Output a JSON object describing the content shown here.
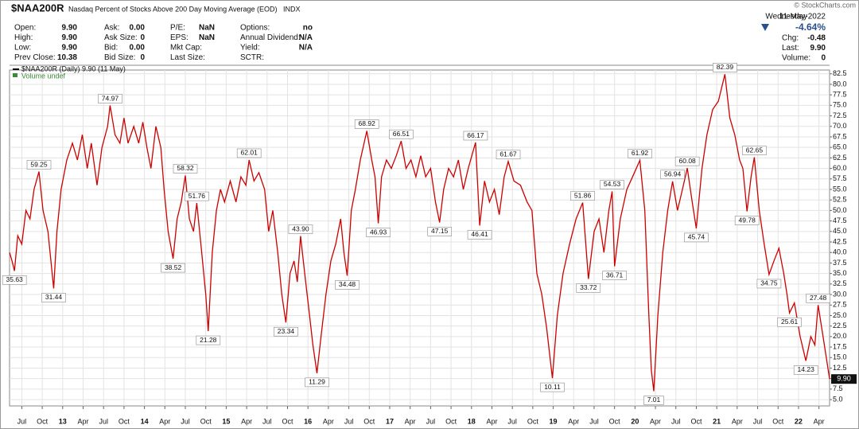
{
  "header": {
    "symbol": "$NAA200R",
    "description": "Nasdaq Percent of Stocks Above 200 Day Moving Average (EOD)",
    "exchange": "INDX",
    "copyright": "© StockCharts.com",
    "weekday": "Wednesday",
    "date": "11-May-2022",
    "change_pct": "-4.64%",
    "quote": [
      [
        {
          "label": "Open:",
          "value": "9.90"
        },
        {
          "label": "High:",
          "value": "9.90"
        },
        {
          "label": "Low:",
          "value": "9.90"
        },
        {
          "label": "Prev Close:",
          "value": "10.38"
        }
      ],
      [
        {
          "label": "Ask:",
          "value": "0.00"
        },
        {
          "label": "Ask Size:",
          "value": "0"
        },
        {
          "label": "Bid:",
          "value": "0.00"
        },
        {
          "label": "Bid Size:",
          "value": "0"
        }
      ],
      [
        {
          "label": "P/E:",
          "value": "NaN"
        },
        {
          "label": "EPS:",
          "value": "NaN"
        },
        {
          "label": "Mkt Cap:"
        },
        {
          "label": "Last Size:"
        }
      ],
      [
        {
          "label": "Options:",
          "value": "no"
        },
        {
          "label": "Annual Dividend:",
          "value": "N/A"
        },
        {
          "label": "Yield:",
          "value": "N/A"
        },
        {
          "label": "SCTR:"
        }
      ],
      [
        {
          "label": "Chg:",
          "value": "-0.48"
        },
        {
          "label": "Last:",
          "value": "9.90"
        },
        {
          "label": "Volume:",
          "value": "0"
        }
      ]
    ]
  },
  "chart_data": {
    "type": "line",
    "legend": [
      "$NAA200R (Daily) 9.90 (11 May)",
      "Volume undef"
    ],
    "grid": true,
    "xlim": [
      2012.35,
      2022.38
    ],
    "ylim": [
      3.5,
      83.4
    ],
    "xticks": [
      {
        "value": 2012.5,
        "label": "Jul"
      },
      {
        "value": 2012.75,
        "label": "Oct"
      },
      {
        "value": 2013,
        "label": "13"
      },
      {
        "value": 2013.25,
        "label": "Apr"
      },
      {
        "value": 2013.5,
        "label": "Jul"
      },
      {
        "value": 2013.75,
        "label": "Oct"
      },
      {
        "value": 2014,
        "label": "14"
      },
      {
        "value": 2014.25,
        "label": "Apr"
      },
      {
        "value": 2014.5,
        "label": "Jul"
      },
      {
        "value": 2014.75,
        "label": "Oct"
      },
      {
        "value": 2015,
        "label": "15"
      },
      {
        "value": 2015.25,
        "label": "Apr"
      },
      {
        "value": 2015.5,
        "label": "Jul"
      },
      {
        "value": 2015.75,
        "label": "Oct"
      },
      {
        "value": 2016,
        "label": "16"
      },
      {
        "value": 2016.25,
        "label": "Apr"
      },
      {
        "value": 2016.5,
        "label": "Jul"
      },
      {
        "value": 2016.75,
        "label": "Oct"
      },
      {
        "value": 2017,
        "label": "17"
      },
      {
        "value": 2017.25,
        "label": "Apr"
      },
      {
        "value": 2017.5,
        "label": "Jul"
      },
      {
        "value": 2017.75,
        "label": "Oct"
      },
      {
        "value": 2018,
        "label": "18"
      },
      {
        "value": 2018.25,
        "label": "Apr"
      },
      {
        "value": 2018.5,
        "label": "Jul"
      },
      {
        "value": 2018.75,
        "label": "Oct"
      },
      {
        "value": 2019,
        "label": "19"
      },
      {
        "value": 2019.25,
        "label": "Apr"
      },
      {
        "value": 2019.5,
        "label": "Jul"
      },
      {
        "value": 2019.75,
        "label": "Oct"
      },
      {
        "value": 2020,
        "label": "20"
      },
      {
        "value": 2020.25,
        "label": "Apr"
      },
      {
        "value": 2020.5,
        "label": "Jul"
      },
      {
        "value": 2020.75,
        "label": "Oct"
      },
      {
        "value": 2021,
        "label": "21"
      },
      {
        "value": 2021.25,
        "label": "Apr"
      },
      {
        "value": 2021.5,
        "label": "Jul"
      },
      {
        "value": 2021.75,
        "label": "Oct"
      },
      {
        "value": 2022,
        "label": "22"
      },
      {
        "value": 2022.25,
        "label": "Apr"
      }
    ],
    "yticks": [
      {
        "value": 5,
        "label": "5.0"
      },
      7.5,
      {
        "value": 10,
        "label": "10.0"
      },
      12.5,
      {
        "value": 15,
        "label": "15.0"
      },
      17.5,
      {
        "value": 20,
        "label": "20.0"
      },
      22.5,
      {
        "value": 25,
        "label": "25.0"
      },
      27.5,
      {
        "value": 30,
        "label": "30.0"
      },
      32.5,
      {
        "value": 35,
        "label": "35.0"
      },
      37.5,
      {
        "value": 40,
        "label": "40.0"
      },
      42.5,
      {
        "value": 45,
        "label": "45.0"
      },
      47.5,
      {
        "value": 50,
        "label": "50.0"
      },
      52.5,
      {
        "value": 55,
        "label": "55.0"
      },
      57.5,
      {
        "value": 60,
        "label": "60.0"
      },
      62.5,
      {
        "value": 65,
        "label": "65.0"
      },
      67.5,
      {
        "value": 70,
        "label": "70.0"
      },
      72.5,
      {
        "value": 75,
        "label": "75.0"
      },
      77.5,
      {
        "value": 80,
        "label": "80.0"
      },
      82.5
    ],
    "x": [
      2012.35,
      2012.38,
      2012.41,
      2012.45,
      2012.5,
      2012.55,
      2012.6,
      2012.65,
      2012.71,
      2012.76,
      2012.82,
      2012.89,
      2012.93,
      2012.98,
      2013.05,
      2013.12,
      2013.18,
      2013.24,
      2013.3,
      2013.35,
      2013.42,
      2013.48,
      2013.55,
      2013.58,
      2013.64,
      2013.7,
      2013.75,
      2013.8,
      2013.87,
      2013.93,
      2013.98,
      2014.03,
      2014.08,
      2014.14,
      2014.2,
      2014.24,
      2014.29,
      2014.35,
      2014.4,
      2014.45,
      2014.5,
      2014.55,
      2014.6,
      2014.64,
      2014.7,
      2014.75,
      2014.78,
      2014.83,
      2014.88,
      2014.93,
      2014.98,
      2015.05,
      2015.12,
      2015.18,
      2015.24,
      2015.28,
      2015.34,
      2015.4,
      2015.47,
      2015.52,
      2015.57,
      2015.63,
      2015.68,
      2015.73,
      2015.78,
      2015.83,
      2015.87,
      2015.91,
      2015.96,
      2016.02,
      2016.06,
      2016.11,
      2016.16,
      2016.22,
      2016.28,
      2016.34,
      2016.4,
      2016.44,
      2016.48,
      2016.53,
      2016.58,
      2016.64,
      2016.72,
      2016.78,
      2016.82,
      2016.86,
      2016.9,
      2016.96,
      2017.02,
      2017.08,
      2017.14,
      2017.2,
      2017.26,
      2017.32,
      2017.38,
      2017.44,
      2017.5,
      2017.56,
      2017.61,
      2017.66,
      2017.72,
      2017.78,
      2017.84,
      2017.9,
      2017.96,
      2018.05,
      2018.1,
      2018.16,
      2018.22,
      2018.28,
      2018.34,
      2018.4,
      2018.45,
      2018.52,
      2018.6,
      2018.68,
      2018.74,
      2018.8,
      2018.86,
      2018.92,
      2018.99,
      2019.05,
      2019.12,
      2019.2,
      2019.28,
      2019.36,
      2019.43,
      2019.5,
      2019.56,
      2019.62,
      2019.68,
      2019.72,
      2019.75,
      2019.82,
      2019.9,
      2019.97,
      2020.06,
      2020.12,
      2020.17,
      2020.2,
      2020.23,
      2020.28,
      2020.34,
      2020.4,
      2020.46,
      2020.52,
      2020.58,
      2020.64,
      2020.7,
      2020.75,
      2020.82,
      2020.88,
      2020.95,
      2021.02,
      2021.1,
      2021.16,
      2021.22,
      2021.28,
      2021.32,
      2021.37,
      2021.42,
      2021.46,
      2021.52,
      2021.58,
      2021.64,
      2021.7,
      2021.76,
      2021.82,
      2021.86,
      2021.89,
      2021.95,
      2022.02,
      2022.09,
      2022.15,
      2022.2,
      2022.24,
      2022.3,
      2022.34,
      2022.38
    ],
    "series": [
      {
        "name": "$NAA200R",
        "color": "#cc0000",
        "values": [
          40,
          38,
          35.63,
          44,
          42,
          50,
          48,
          55,
          59.25,
          50,
          45,
          31.44,
          45,
          55,
          62,
          66,
          62,
          68,
          60,
          66,
          56,
          65,
          70,
          74.97,
          68,
          66,
          72,
          66,
          70,
          66,
          71,
          65,
          60,
          70,
          65,
          55,
          45,
          38.52,
          48,
          52,
          58.32,
          48,
          45,
          51.76,
          40,
          30,
          21.28,
          40,
          50,
          55,
          52,
          57,
          52,
          58,
          56,
          62.01,
          57,
          59,
          55,
          45,
          50,
          40,
          30,
          23.34,
          35,
          38,
          33,
          43.9,
          35,
          25,
          18,
          11.29,
          20,
          30,
          38,
          42,
          48,
          40,
          34.48,
          50,
          55,
          62,
          68.92,
          62,
          58,
          46.93,
          58,
          62,
          60,
          63,
          66.51,
          60,
          62,
          58,
          63,
          58,
          60,
          52,
          47.15,
          55,
          60,
          58,
          62,
          55,
          60,
          66.17,
          46.41,
          57,
          52,
          55,
          49,
          58,
          61.67,
          57,
          56,
          52,
          50,
          35,
          30,
          22,
          10.11,
          25,
          35,
          42,
          48,
          51.86,
          33.72,
          45,
          48,
          40,
          50,
          54.53,
          36.71,
          48,
          55,
          58,
          61.92,
          50,
          25,
          12,
          7.01,
          25,
          40,
          50,
          56.94,
          50,
          55,
          60.08,
          52,
          45.74,
          60,
          68,
          74,
          76,
          82.39,
          72,
          68,
          62,
          60,
          49.78,
          58,
          62.65,
          50,
          42,
          34.75,
          38,
          41,
          35,
          30,
          25.61,
          28,
          20,
          14.23,
          20,
          18,
          27.48,
          20,
          15,
          9.9
        ],
        "value_labels": [
          null,
          null,
          "35.63",
          null,
          null,
          null,
          null,
          null,
          "59.25",
          null,
          null,
          "31.44",
          null,
          null,
          null,
          null,
          null,
          null,
          null,
          null,
          null,
          null,
          null,
          "74.97",
          null,
          null,
          null,
          null,
          null,
          null,
          null,
          null,
          null,
          null,
          null,
          null,
          null,
          "38.52",
          null,
          null,
          "58.32",
          null,
          null,
          "51.76",
          null,
          null,
          "21.28",
          null,
          null,
          null,
          null,
          null,
          null,
          null,
          null,
          "62.01",
          null,
          null,
          null,
          null,
          null,
          null,
          null,
          "23.34",
          null,
          null,
          null,
          "43.90",
          null,
          null,
          null,
          "11.29",
          null,
          null,
          null,
          null,
          null,
          null,
          "34.48",
          null,
          null,
          null,
          "68.92",
          null,
          null,
          "46.93",
          null,
          null,
          null,
          null,
          "66.51",
          null,
          null,
          null,
          null,
          null,
          null,
          null,
          "47.15",
          null,
          null,
          null,
          null,
          null,
          null,
          "66.17",
          "46.41",
          null,
          null,
          null,
          null,
          null,
          "61.67",
          null,
          null,
          null,
          null,
          null,
          null,
          null,
          "10.11",
          null,
          null,
          null,
          null,
          "51.86",
          "33.72",
          null,
          null,
          null,
          null,
          "54.53",
          "36.71",
          null,
          null,
          null,
          "61.92",
          null,
          null,
          null,
          "7.01",
          null,
          null,
          null,
          "56.94",
          null,
          null,
          "60.08",
          null,
          "45.74",
          null,
          null,
          null,
          null,
          "82.39",
          null,
          null,
          null,
          null,
          "49.78",
          null,
          "62.65",
          null,
          null,
          "34.75",
          null,
          null,
          null,
          null,
          "25.61",
          null,
          null,
          "14.23",
          null,
          null,
          "27.48",
          null,
          null,
          "9.90"
        ]
      }
    ]
  }
}
